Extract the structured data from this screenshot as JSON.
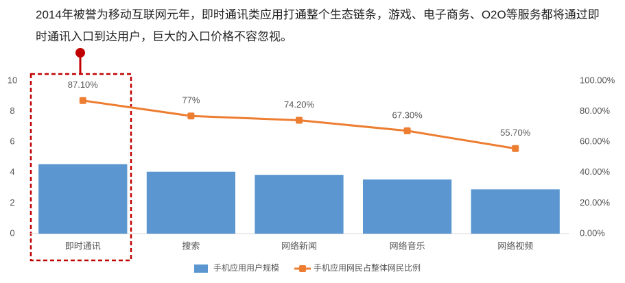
{
  "chart_data": {
    "type": "bar-line",
    "title": "2014年被誉为移动互联网元年，即时通讯类应用打通整个生态链条，游戏、电子商务、O2O等服务都将通过即时通讯入口到达用户，巨大的入口价格不容忽视。",
    "categories": [
      "即时通讯",
      "搜索",
      "网络新闻",
      "网络音乐",
      "网络视频"
    ],
    "series": [
      {
        "name": "手机应用用户规模",
        "color": "#5b96d0",
        "values": [
          4.55,
          4.05,
          3.85,
          3.55,
          2.9
        ]
      },
      {
        "name": "手机应用网民占整体网民比例",
        "color": "#ed7d31",
        "axis": "y2",
        "values": [
          87.1,
          77,
          74.2,
          67.3,
          55.7
        ],
        "value_labels": [
          "87.10%",
          "77%",
          "74.20%",
          "67.30%",
          "55.70%"
        ]
      }
    ],
    "ylim": [
      0,
      10
    ],
    "yticks": [
      0,
      2,
      4,
      6,
      8,
      10
    ],
    "y2lim": [
      0,
      100
    ],
    "y2ticks": [
      {
        "value": 0,
        "label": "0.00%"
      },
      {
        "value": 20,
        "label": "20.00%"
      },
      {
        "value": 40,
        "label": "40.00%"
      },
      {
        "value": 60,
        "label": "60.00%"
      },
      {
        "value": 80,
        "label": "80.00%"
      },
      {
        "value": 100,
        "label": "100.00%"
      }
    ],
    "grid": false
  }
}
